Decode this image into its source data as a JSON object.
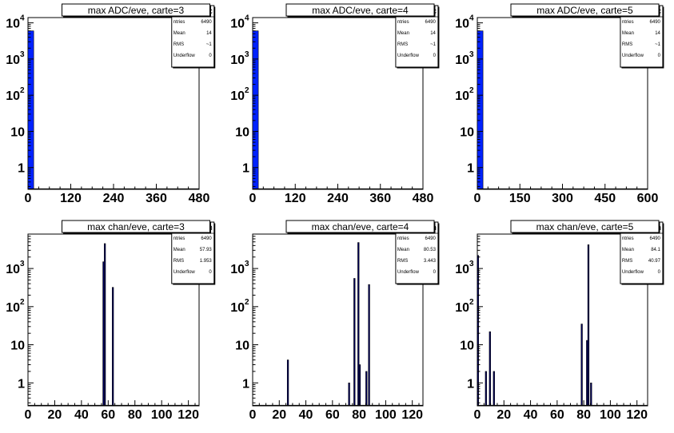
{
  "colors": {
    "fill_blue": "#0022ff",
    "fill_navy": "#000066",
    "axis": "#000000",
    "background": "#ffffff"
  },
  "chart_data": [
    {
      "type": "bar",
      "title": "max ADC/eve, carte=3",
      "stats_header": "Adc",
      "stats": [
        {
          "label": "ntries",
          "value": "6490"
        },
        {
          "label": "Mean",
          "value": "14"
        },
        {
          "label": "RMS",
          "value": "~1"
        },
        {
          "label": "Underflow",
          "value": "0"
        }
      ],
      "yscale": "log",
      "ylim": [
        0.25,
        14000
      ],
      "xlim": [
        0,
        480
      ],
      "x_ticks": [
        0,
        120,
        240,
        360,
        480
      ],
      "y_ticks": [
        {
          "v": 1,
          "label": "1"
        },
        {
          "v": 10,
          "label": "10"
        },
        {
          "v": 100,
          "base": "10",
          "exp": "2"
        },
        {
          "v": 1000,
          "base": "10",
          "exp": "3"
        },
        {
          "v": 10000,
          "base": "10",
          "exp": "4"
        }
      ],
      "bars": [
        {
          "x0": 0,
          "x1": 16,
          "value": 6000
        }
      ],
      "color": "#0022ff"
    },
    {
      "type": "bar",
      "title": "max ADC/eve, carte=4",
      "stats_header": "Adc",
      "stats": [
        {
          "label": "ntries",
          "value": "6490"
        },
        {
          "label": "Mean",
          "value": "14"
        },
        {
          "label": "RMS",
          "value": "~1"
        },
        {
          "label": "Underflow",
          "value": "0"
        }
      ],
      "yscale": "log",
      "ylim": [
        0.25,
        14000
      ],
      "xlim": [
        0,
        480
      ],
      "x_ticks": [
        0,
        120,
        240,
        360,
        480
      ],
      "y_ticks": [
        {
          "v": 1,
          "label": "1"
        },
        {
          "v": 10,
          "label": "10"
        },
        {
          "v": 100,
          "base": "10",
          "exp": "2"
        },
        {
          "v": 1000,
          "base": "10",
          "exp": "3"
        },
        {
          "v": 10000,
          "base": "10",
          "exp": "4"
        }
      ],
      "bars": [
        {
          "x0": 0,
          "x1": 16,
          "value": 6000
        }
      ],
      "color": "#0022ff"
    },
    {
      "type": "bar",
      "title": "max ADC/eve, carte=5",
      "stats_header": "Adc",
      "stats": [
        {
          "label": "ntries",
          "value": "6490"
        },
        {
          "label": "Mean",
          "value": "14"
        },
        {
          "label": "RMS",
          "value": "~1"
        },
        {
          "label": "Underflow",
          "value": "0"
        }
      ],
      "yscale": "log",
      "ylim": [
        0.25,
        14000
      ],
      "xlim": [
        0,
        600
      ],
      "x_ticks": [
        0,
        150,
        300,
        450,
        600
      ],
      "y_ticks": [
        {
          "v": 1,
          "label": "1"
        },
        {
          "v": 10,
          "label": "10"
        },
        {
          "v": 100,
          "base": "10",
          "exp": "2"
        },
        {
          "v": 1000,
          "base": "10",
          "exp": "3"
        },
        {
          "v": 10000,
          "base": "10",
          "exp": "4"
        }
      ],
      "bars": [
        {
          "x0": 0,
          "x1": 20,
          "value": 6000
        }
      ],
      "color": "#0022ff"
    },
    {
      "type": "bar",
      "title": "max chan/eve, carte=3",
      "stats_header": "Chan",
      "stats": [
        {
          "label": "ntries",
          "value": "6490"
        },
        {
          "label": "Mean",
          "value": "57.93"
        },
        {
          "label": "RMS",
          "value": "1.953"
        },
        {
          "label": "Underflow",
          "value": "0"
        }
      ],
      "yscale": "log",
      "ylim": [
        0.25,
        8000
      ],
      "xlim": [
        0,
        128
      ],
      "x_ticks": [
        0,
        20,
        40,
        60,
        80,
        100,
        120
      ],
      "y_ticks": [
        {
          "v": 1,
          "label": "1"
        },
        {
          "v": 10,
          "label": "10"
        },
        {
          "v": 100,
          "base": "10",
          "exp": "2"
        },
        {
          "v": 1000,
          "base": "10",
          "exp": "3"
        }
      ],
      "bars": [
        {
          "x0": 56,
          "x1": 57,
          "value": 1500
        },
        {
          "x0": 57,
          "x1": 58,
          "value": 4500
        },
        {
          "x0": 63,
          "x1": 64,
          "value": 320
        }
      ],
      "color": "#000066"
    },
    {
      "type": "bar",
      "title": "max chan/eve, carte=4",
      "stats_header": "Chan",
      "stats": [
        {
          "label": "ntries",
          "value": "6490"
        },
        {
          "label": "Mean",
          "value": "80.53"
        },
        {
          "label": "RMS",
          "value": "3.443"
        },
        {
          "label": "Underflow",
          "value": "0"
        }
      ],
      "yscale": "log",
      "ylim": [
        0.25,
        8000
      ],
      "xlim": [
        0,
        128
      ],
      "x_ticks": [
        0,
        20,
        40,
        60,
        80,
        100,
        120
      ],
      "y_ticks": [
        {
          "v": 1,
          "label": "1"
        },
        {
          "v": 10,
          "label": "10"
        },
        {
          "v": 100,
          "base": "10",
          "exp": "2"
        },
        {
          "v": 1000,
          "base": "10",
          "exp": "3"
        }
      ],
      "bars": [
        {
          "x0": 26,
          "x1": 27,
          "value": 4
        },
        {
          "x0": 72,
          "x1": 73,
          "value": 1
        },
        {
          "x0": 76,
          "x1": 77,
          "value": 550
        },
        {
          "x0": 79,
          "x1": 80,
          "value": 4800
        },
        {
          "x0": 80,
          "x1": 81,
          "value": 3
        },
        {
          "x0": 85,
          "x1": 86,
          "value": 2
        },
        {
          "x0": 87,
          "x1": 88,
          "value": 380
        }
      ],
      "color": "#000066"
    },
    {
      "type": "bar",
      "title": "max chan/eve, carte=5",
      "stats_header": "Chan",
      "stats": [
        {
          "label": "ntries",
          "value": "6490"
        },
        {
          "label": "Mean",
          "value": "84.1"
        },
        {
          "label": "RMS",
          "value": "40.97"
        },
        {
          "label": "Underflow",
          "value": "0"
        }
      ],
      "yscale": "log",
      "ylim": [
        0.25,
        8000
      ],
      "xlim": [
        0,
        128
      ],
      "x_ticks": [
        0,
        20,
        40,
        60,
        80,
        100,
        120
      ],
      "y_ticks": [
        {
          "v": 1,
          "label": "1"
        },
        {
          "v": 10,
          "label": "10"
        },
        {
          "v": 100,
          "base": "10",
          "exp": "2"
        },
        {
          "v": 1000,
          "base": "10",
          "exp": "3"
        }
      ],
      "bars": [
        {
          "x0": 0,
          "x1": 1,
          "value": 2200
        },
        {
          "x0": 6,
          "x1": 7,
          "value": 2
        },
        {
          "x0": 9,
          "x1": 10,
          "value": 22
        },
        {
          "x0": 12,
          "x1": 13,
          "value": 2
        },
        {
          "x0": 78,
          "x1": 79,
          "value": 35
        },
        {
          "x0": 82,
          "x1": 83,
          "value": 13
        },
        {
          "x0": 83,
          "x1": 84,
          "value": 4200
        },
        {
          "x0": 85,
          "x1": 86,
          "value": 1
        }
      ],
      "color": "#000066"
    }
  ]
}
